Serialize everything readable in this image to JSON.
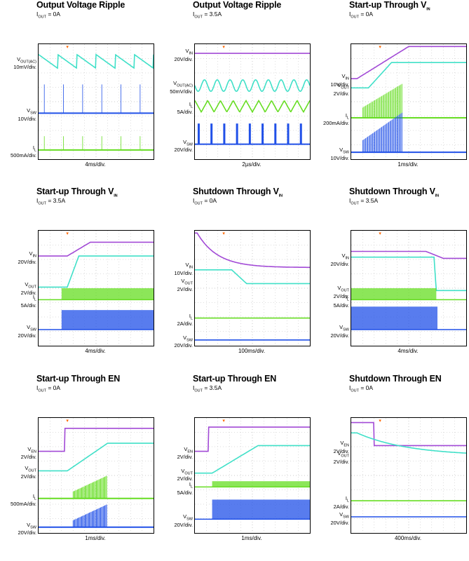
{
  "colors": {
    "purple": "#a24ad6",
    "cyan": "#40e0c8",
    "blue": "#2050e8",
    "green": "#66dd22",
    "orange": "#ff6600"
  },
  "chart_data": [
    {
      "type": "oscilloscope",
      "title": "Output Voltage Ripple",
      "condition": "IOUT = 0A",
      "time_scale": "4ms/div.",
      "channels": [
        {
          "label": "VOUT(AC)",
          "scale": "10mV/div.",
          "color": "cyan",
          "shape": "sawtooth_down",
          "level": 0.15,
          "amp": 0.12,
          "periods": 6
        },
        {
          "label": "VSW",
          "scale": "10V/div.",
          "color": "blue",
          "shape": "spikes",
          "level": 0.6,
          "amp": 0.25,
          "periods": 6
        },
        {
          "label": "IL",
          "scale": "500mA/div.",
          "color": "green",
          "shape": "spikes",
          "level": 0.92,
          "amp": 0.12,
          "periods": 6
        }
      ]
    },
    {
      "type": "oscilloscope",
      "title": "Output Voltage Ripple",
      "condition": "IOUT = 3.5A",
      "time_scale": "2µs/div.",
      "channels": [
        {
          "label": "VIN",
          "scale": "20V/div.",
          "color": "purple",
          "shape": "flat",
          "level": 0.08
        },
        {
          "label": "VOUT(AC)",
          "scale": "50mV/div.",
          "color": "cyan",
          "shape": "ripple",
          "level": 0.36,
          "amp": 0.05,
          "periods": 9
        },
        {
          "label": "IL",
          "scale": "5A/div.",
          "color": "green",
          "shape": "triangle",
          "level": 0.54,
          "amp": 0.05,
          "periods": 9
        },
        {
          "label": "VSW",
          "scale": "20V/div.",
          "color": "blue",
          "shape": "pulse",
          "level": 0.87,
          "amp": 0.18,
          "periods": 9
        }
      ]
    },
    {
      "type": "oscilloscope",
      "title": "Start-up Through VIN",
      "condition": "IOUT = 0A",
      "time_scale": "1ms/div.",
      "channels": [
        {
          "label": "VIN",
          "scale": "10V/div.",
          "color": "purple",
          "shape": "rise",
          "level": 0.3,
          "amp": 0.28,
          "t0": 0.05,
          "t1": 0.5
        },
        {
          "label": "VOUT",
          "scale": "2V/div.",
          "color": "cyan",
          "shape": "rise",
          "level": 0.38,
          "amp": 0.22,
          "t0": 0.15,
          "t1": 0.35
        },
        {
          "label": "IL",
          "scale": "200mA/div.",
          "color": "green",
          "shape": "burst",
          "level": 0.64,
          "amp": 0.3,
          "t0": 0.1,
          "t1": 0.45
        },
        {
          "label": "VSW",
          "scale": "10V/div.",
          "color": "blue",
          "shape": "burst",
          "level": 0.94,
          "amp": 0.35,
          "t0": 0.1,
          "t1": 0.45
        }
      ]
    },
    {
      "type": "oscilloscope",
      "title": "Start-up Through VIN",
      "condition": "IOUT = 3.5A",
      "time_scale": "4ms/div.",
      "channels": [
        {
          "label": "VIN",
          "scale": "20V/div.",
          "color": "purple",
          "shape": "rise",
          "level": 0.22,
          "amp": 0.12,
          "t0": 0.25,
          "t1": 0.45
        },
        {
          "label": "VOUT",
          "scale": "2V/div.",
          "color": "cyan",
          "shape": "rise",
          "level": 0.49,
          "amp": 0.27,
          "t0": 0.25,
          "t1": 0.35
        },
        {
          "label": "IL",
          "scale": "5A/div.",
          "color": "green",
          "shape": "band_rise",
          "level": 0.6,
          "amp": 0.1,
          "t0": 0.2,
          "t1": 0.3
        },
        {
          "label": "VSW",
          "scale": "20V/div.",
          "color": "blue",
          "shape": "band_rise",
          "level": 0.86,
          "amp": 0.17,
          "t0": 0.2,
          "t1": 0.3
        }
      ]
    },
    {
      "type": "oscilloscope",
      "title": "Shutdown Through VIN",
      "condition": "IOUT = 0A",
      "time_scale": "100ms/div.",
      "channels": [
        {
          "label": "VIN",
          "scale": "10V/div.",
          "color": "purple",
          "shape": "decay",
          "level": 0.32,
          "amp": 0.3,
          "t0": 0.02,
          "t1": 0.55
        },
        {
          "label": "VOUT",
          "scale": "2V/div.",
          "color": "cyan",
          "shape": "fall",
          "level": 0.46,
          "amp": 0.12,
          "t0": 0.32,
          "t1": 0.45
        },
        {
          "label": "IL",
          "scale": "2A/div.",
          "color": "green",
          "shape": "flat",
          "level": 0.76
        },
        {
          "label": "VSW",
          "scale": "20V/div.",
          "color": "blue",
          "shape": "flat",
          "level": 0.95
        }
      ]
    },
    {
      "type": "oscilloscope",
      "title": "Shutdown Through VIN",
      "condition": "IOUT = 3.5A",
      "time_scale": "4ms/div.",
      "channels": [
        {
          "label": "VIN",
          "scale": "20V/div.",
          "color": "purple",
          "shape": "fall",
          "level": 0.24,
          "amp": 0.06,
          "t0": 0.65,
          "t1": 0.8
        },
        {
          "label": "VOUT",
          "scale": "2V/div.",
          "color": "cyan",
          "shape": "fall",
          "level": 0.52,
          "amp": 0.29,
          "t0": 0.72,
          "t1": 0.74
        },
        {
          "label": "IL",
          "scale": "5A/div.",
          "color": "green",
          "shape": "band_fall",
          "level": 0.6,
          "amp": 0.1,
          "t0": 0.72,
          "t1": 0.74
        },
        {
          "label": "VSW",
          "scale": "20V/div.",
          "color": "blue",
          "shape": "band_fall",
          "level": 0.86,
          "amp": 0.2,
          "t0": 0.4,
          "t1": 0.75
        }
      ]
    },
    {
      "type": "oscilloscope",
      "title": "Start-up Through EN",
      "condition": "IOUT = 0A",
      "time_scale": "1ms/div.",
      "channels": [
        {
          "label": "VEN",
          "scale": "2V/div.",
          "color": "purple",
          "shape": "step_up",
          "level": 0.29,
          "amp": 0.2,
          "t0": 0.23,
          "t1": 0.24
        },
        {
          "label": "VOUT",
          "scale": "2V/div.",
          "color": "cyan",
          "shape": "rise",
          "level": 0.46,
          "amp": 0.24,
          "t0": 0.25,
          "t1": 0.6
        },
        {
          "label": "IL",
          "scale": "500mA/div.",
          "color": "green",
          "shape": "burst",
          "level": 0.7,
          "amp": 0.2,
          "t0": 0.3,
          "t1": 0.6
        },
        {
          "label": "VSW",
          "scale": "20V/div.",
          "color": "blue",
          "shape": "burst",
          "level": 0.95,
          "amp": 0.2,
          "t0": 0.3,
          "t1": 0.6
        }
      ]
    },
    {
      "type": "oscilloscope",
      "title": "Start-up Through EN",
      "condition": "IOUT = 3.5A",
      "time_scale": "1ms/div.",
      "channels": [
        {
          "label": "VEN",
          "scale": "2V/div.",
          "color": "purple",
          "shape": "step_up",
          "level": 0.29,
          "amp": 0.21,
          "t0": 0.12,
          "t1": 0.13
        },
        {
          "label": "VOUT",
          "scale": "2V/div.",
          "color": "cyan",
          "shape": "rise",
          "level": 0.48,
          "amp": 0.24,
          "t0": 0.15,
          "t1": 0.55
        },
        {
          "label": "IL",
          "scale": "5A/div.",
          "color": "green",
          "shape": "band_rise",
          "level": 0.6,
          "amp": 0.05,
          "t0": 0.15,
          "t1": 0.55
        },
        {
          "label": "VSW",
          "scale": "20V/div.",
          "color": "blue",
          "shape": "band_rise",
          "level": 0.88,
          "amp": 0.17,
          "t0": 0.15,
          "t1": 0.3
        }
      ]
    },
    {
      "type": "oscilloscope",
      "title": "Shutdown Through EN",
      "condition": "IOUT = 0A",
      "time_scale": "400ms/div.",
      "channels": [
        {
          "label": "VEN",
          "scale": "2V/div.",
          "color": "purple",
          "shape": "step_down",
          "level": 0.24,
          "amp": 0.2,
          "t0": 0.2,
          "t1": 0.21
        },
        {
          "label": "VOUT",
          "scale": "2V/div.",
          "color": "cyan",
          "shape": "decay",
          "level": 0.33,
          "amp": 0.2,
          "t0": 0.05,
          "t1": 1.4
        },
        {
          "label": "IL",
          "scale": "2A/div.",
          "color": "green",
          "shape": "flat",
          "level": 0.72
        },
        {
          "label": "VSW",
          "scale": "20V/div.",
          "color": "blue",
          "shape": "flat",
          "level": 0.86
        }
      ]
    }
  ]
}
